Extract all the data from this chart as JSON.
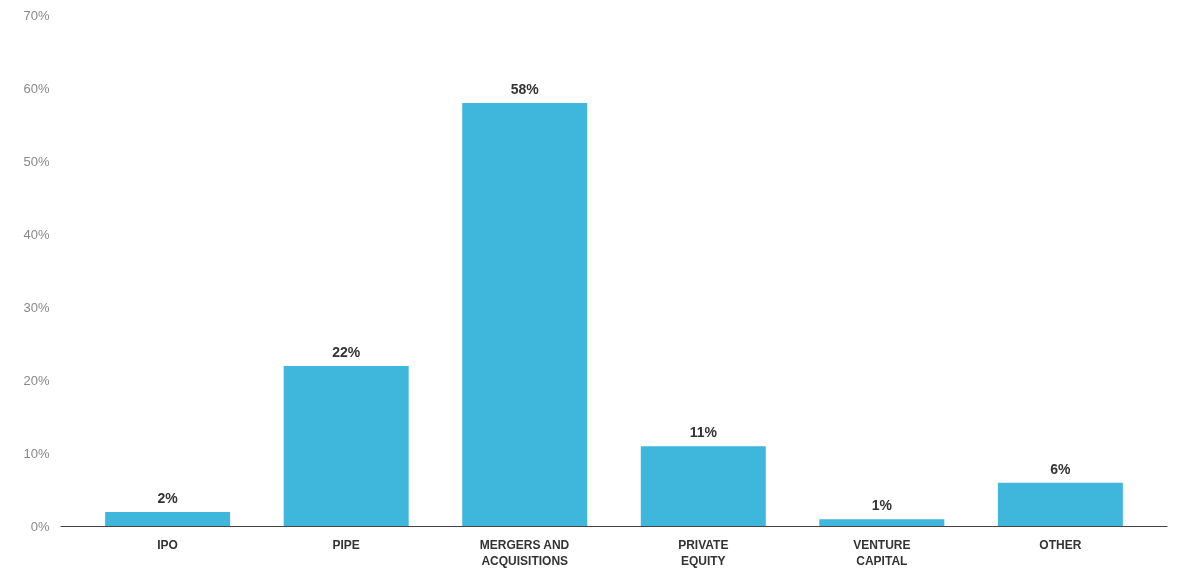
{
  "chart_data": {
    "type": "bar",
    "categories": [
      "IPO",
      "PIPE",
      "MERGERS AND ACQUISITIONS",
      "PRIVATE EQUITY",
      "VENTURE CAPITAL",
      "OTHER"
    ],
    "values": [
      2,
      22,
      58,
      11,
      1,
      6
    ],
    "value_labels": [
      "2%",
      "22%",
      "58%",
      "11%",
      "1%",
      "6%"
    ],
    "color": "#3fb6dc",
    "ylim": [
      0,
      70
    ],
    "yticks": [
      {
        "value": 0,
        "label": "0%"
      },
      {
        "value": 10,
        "label": "10%"
      },
      {
        "value": 20,
        "label": "20%"
      },
      {
        "value": 30,
        "label": "30%"
      },
      {
        "value": 40,
        "label": "40%"
      },
      {
        "value": 50,
        "label": "50%"
      },
      {
        "value": 60,
        "label": "60%"
      },
      {
        "value": 70,
        "label": "70%"
      }
    ],
    "grid": false
  }
}
